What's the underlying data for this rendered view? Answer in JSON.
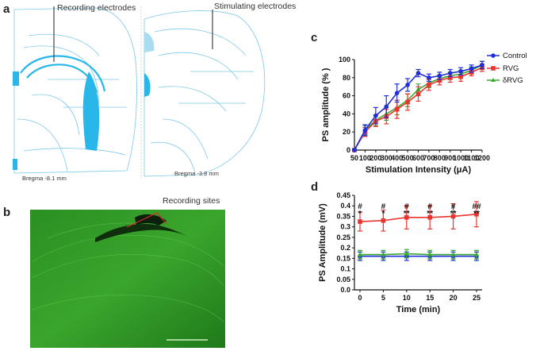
{
  "figure": {
    "panel_a": {
      "letter": "a",
      "recording_label": "Recording electrodes",
      "stimulating_label": "Stimulating electrodes",
      "bregma_left": "Bregma -8.1 mm",
      "bregma_right": "Bregma -3.8 mm"
    },
    "panel_b": {
      "letter": "b",
      "recording_sites_label": "Recording sites"
    },
    "panel_c": {
      "letter": "c"
    },
    "panel_d": {
      "letter": "d"
    },
    "colors": {
      "control": "#1f2fd6",
      "rvg": "#e8352f",
      "drvg": "#3aa832",
      "atlas": "#29b6e8",
      "tissue": "#1f8a1f"
    }
  },
  "chart_data": [
    {
      "type": "line",
      "panel": "c",
      "xlabel": "Stimulation Intensity (μA)",
      "ylabel": "PS amplitude (% )",
      "x": [
        50,
        100,
        200,
        300,
        400,
        500,
        600,
        700,
        800,
        900,
        1000,
        1100,
        1200
      ],
      "x_tick_labels": [
        "50",
        "100",
        "200",
        "300",
        "400",
        "500",
        "600",
        "700",
        "800",
        "900",
        "1000",
        "1100",
        "1200"
      ],
      "ylim": [
        0,
        100
      ],
      "y_ticks": [
        0,
        20,
        40,
        60,
        80,
        100
      ],
      "legend": [
        "Control",
        "RVG",
        "δRVG"
      ],
      "series": [
        {
          "name": "Control",
          "values": [
            0,
            22,
            38,
            48,
            63,
            72,
            85,
            80,
            82,
            85,
            87,
            90,
            94
          ],
          "err": [
            1,
            6,
            9,
            12,
            10,
            7,
            4,
            4,
            4,
            4,
            4,
            4,
            4
          ]
        },
        {
          "name": "RVG",
          "values": [
            0,
            20,
            32,
            37,
            45,
            53,
            62,
            72,
            77,
            80,
            81,
            86,
            91
          ],
          "err": [
            1,
            5,
            6,
            8,
            10,
            9,
            8,
            6,
            5,
            5,
            5,
            4,
            4
          ]
        },
        {
          "name": "δRVG",
          "values": [
            0,
            22,
            33,
            40,
            47,
            55,
            67,
            74,
            79,
            82,
            84,
            88,
            94
          ],
          "err": [
            1,
            5,
            6,
            7,
            8,
            7,
            6,
            5,
            4,
            4,
            4,
            4,
            4
          ]
        }
      ]
    },
    {
      "type": "line",
      "panel": "d",
      "xlabel": "Time (min)",
      "ylabel": "PS Amplitude (mV)",
      "x": [
        0,
        5,
        10,
        15,
        20,
        25
      ],
      "x_tick_labels": [
        "0",
        "5",
        "10",
        "15",
        "20",
        "25"
      ],
      "ylim": [
        0,
        0.45
      ],
      "y_ticks": [
        0.0,
        0.05,
        0.1,
        0.15,
        0.2,
        0.25,
        0.3,
        0.35,
        0.4,
        0.45
      ],
      "y_tick_labels": [
        "0.0",
        "0.05",
        "0.1",
        "0.15",
        "0.2",
        "0.25",
        "0.3",
        "0.35",
        "0.4",
        "0.45"
      ],
      "series": [
        {
          "name": "Control",
          "values": [
            0.16,
            0.16,
            0.16,
            0.16,
            0.16,
            0.16
          ],
          "err": [
            0.02,
            0.02,
            0.02,
            0.02,
            0.02,
            0.02
          ]
        },
        {
          "name": "RVG",
          "values": [
            0.325,
            0.33,
            0.345,
            0.345,
            0.35,
            0.36
          ],
          "err": [
            0.045,
            0.05,
            0.055,
            0.055,
            0.06,
            0.06
          ]
        },
        {
          "name": "δRVG",
          "values": [
            0.168,
            0.168,
            0.172,
            0.168,
            0.168,
            0.168
          ],
          "err": [
            0.02,
            0.02,
            0.02,
            0.02,
            0.02,
            0.02
          ]
        }
      ],
      "annotations": [
        {
          "x": 0,
          "top": "#",
          "bottom": "*"
        },
        {
          "x": 5,
          "top": "#",
          "bottom": "*"
        },
        {
          "x": 10,
          "top": "#",
          "bottom": "**"
        },
        {
          "x": 15,
          "top": "#",
          "bottom": "**"
        },
        {
          "x": 20,
          "top": "#",
          "bottom": "**"
        },
        {
          "x": 25,
          "top": "##",
          "bottom": "**"
        }
      ]
    }
  ]
}
